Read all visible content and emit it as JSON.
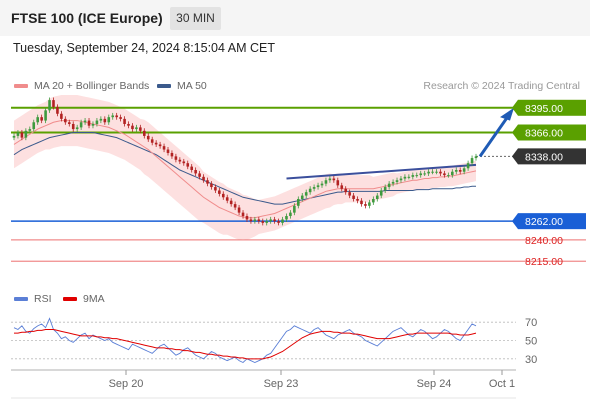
{
  "header": {
    "title": "FTSE 100 (ICE Europe)",
    "interval": "30 MIN"
  },
  "timestamp": "Tuesday, September 24, 2024 8:15:04 AM CET",
  "legend": [
    {
      "label": "MA 20 + Bollinger Bands",
      "color": "#f08c8c"
    },
    {
      "label": "MA 50",
      "color": "#3b5a8c"
    }
  ],
  "credit": "Research © 2024 Trading Central",
  "rsi_legend": [
    {
      "label": "RSI",
      "color": "#5b7fd6"
    },
    {
      "label": "9MA",
      "color": "#e00000"
    }
  ],
  "colors": {
    "up_candle": "#3e9a3e",
    "down_candle": "#b22222",
    "ma20": "#f08c8c",
    "ma50": "#3b5a8c",
    "band_fill": "#fde0e0",
    "resistance": "#5aa000",
    "support": "#1a5fd6",
    "target": "#f08c8c"
  },
  "chart_data": [
    {
      "type": "candlestick",
      "title": "FTSE 100 (ICE Europe) 30 MIN",
      "ylim": [
        8200,
        8410
      ],
      "x_ticks": [
        "Sep 20",
        "Sep 23",
        "Sep 24",
        "Oct 1"
      ],
      "levels": [
        {
          "value": 8395.0,
          "label": "8395.00",
          "kind": "resistance"
        },
        {
          "value": 8366.0,
          "label": "8366.00",
          "kind": "resistance"
        },
        {
          "value": 8338.0,
          "label": "8338.00",
          "kind": "last"
        },
        {
          "value": 8262.0,
          "label": "8262.00",
          "kind": "support"
        },
        {
          "value": 8240.0,
          "label": "8240.00",
          "kind": "target"
        },
        {
          "value": 8215.0,
          "label": "8215.00",
          "kind": "target"
        }
      ],
      "close": [
        8362,
        8366,
        8360,
        8368,
        8370,
        8378,
        8384,
        8380,
        8392,
        8404,
        8396,
        8388,
        8382,
        8378,
        8376,
        8370,
        8372,
        8378,
        8380,
        8374,
        8376,
        8380,
        8382,
        8378,
        8384,
        8386,
        8384,
        8382,
        8376,
        8374,
        8370,
        8372,
        8368,
        8362,
        8358,
        8354,
        8352,
        8350,
        8346,
        8342,
        8338,
        8334,
        8332,
        8330,
        8326,
        8322,
        8318,
        8314,
        8310,
        8306,
        8302,
        8298,
        8294,
        8290,
        8286,
        8282,
        8278,
        8272,
        8268,
        8264,
        8262,
        8264,
        8262,
        8260,
        8262,
        8264,
        8262,
        8260,
        8264,
        8268,
        8272,
        8280,
        8288,
        8292,
        8296,
        8300,
        8302,
        8304,
        8306,
        8310,
        8312,
        8310,
        8304,
        8300,
        8296,
        8292,
        8288,
        8286,
        8282,
        8280,
        8284,
        8288,
        8292,
        8298,
        8302,
        8306,
        8308,
        8310,
        8312,
        8314,
        8314,
        8316,
        8316,
        8318,
        8318,
        8320,
        8320,
        8320,
        8318,
        8316,
        8316,
        8320,
        8322,
        8320,
        8324,
        8330,
        8336,
        8338
      ],
      "ma20": [
        8352,
        8355,
        8358,
        8361,
        8364,
        8367,
        8370,
        8372,
        8374,
        8376,
        8378,
        8379,
        8380,
        8380,
        8380,
        8380,
        8380,
        8379,
        8378,
        8377,
        8376,
        8375,
        8374,
        8373,
        8372,
        8370,
        8368,
        8366,
        8364,
        8361,
        8358,
        8355,
        8352,
        8349,
        8346,
        8342,
        8338,
        8334,
        8330,
        8326,
        8322,
        8318,
        8314,
        8310,
        8306,
        8302,
        8298,
        8294,
        8290,
        8287,
        8284,
        8281,
        8278,
        8276,
        8274,
        8272,
        8270,
        8268,
        8267,
        8266,
        8266,
        8266,
        8267,
        8268,
        8269,
        8270,
        8271,
        8273,
        8275,
        8277,
        8279,
        8281,
        8283,
        8285,
        8287,
        8289,
        8291,
        8293,
        8295,
        8297,
        8298,
        8299,
        8300,
        8300,
        8300,
        8300,
        8300,
        8300,
        8300,
        8300,
        8300,
        8300,
        8301,
        8302,
        8303,
        8304,
        8305,
        8306,
        8307,
        8308,
        8309,
        8310,
        8310,
        8311,
        8312,
        8312,
        8313,
        8313,
        8314,
        8314,
        8315,
        8315,
        8316,
        8317,
        8318,
        8319,
        8320,
        8321
      ],
      "ma50": [
        8340,
        8343,
        8346,
        8348,
        8350,
        8352,
        8354,
        8356,
        8358,
        8360,
        8361,
        8362,
        8363,
        8364,
        8365,
        8366,
        8366,
        8366,
        8366,
        8366,
        8366,
        8365,
        8364,
        8363,
        8362,
        8361,
        8360,
        8358,
        8356,
        8354,
        8352,
        8350,
        8348,
        8346,
        8344,
        8342,
        8340,
        8337,
        8334,
        8331,
        8328,
        8325,
        8322,
        8320,
        8318,
        8316,
        8314,
        8312,
        8310,
        8308,
        8306,
        8304,
        8302,
        8300,
        8298,
        8296,
        8294,
        8292,
        8290,
        8289,
        8288,
        8287,
        8286,
        8285,
        8284,
        8283,
        8282,
        8282,
        8282,
        8283,
        8284,
        8285,
        8286,
        8287,
        8288,
        8289,
        8290,
        8291,
        8292,
        8293,
        8294,
        8295,
        8296,
        8296,
        8297,
        8297,
        8297,
        8297,
        8297,
        8297,
        8297,
        8297,
        8297,
        8297,
        8298,
        8298,
        8298,
        8298,
        8298,
        8298,
        8298,
        8298,
        8299,
        8299,
        8299,
        8299,
        8300,
        8300,
        8300,
        8300,
        8300,
        8300,
        8301,
        8301,
        8302,
        8302,
        8303,
        8303
      ],
      "band_width": [
        28,
        28,
        28,
        28,
        28,
        28,
        28,
        28,
        28,
        30,
        30,
        30,
        30,
        30,
        30,
        30,
        30,
        30,
        30,
        30,
        30,
        30,
        30,
        30,
        30,
        30,
        30,
        30,
        30,
        30,
        30,
        30,
        30,
        32,
        32,
        32,
        32,
        32,
        32,
        32,
        32,
        32,
        32,
        32,
        32,
        32,
        32,
        32,
        30,
        30,
        30,
        30,
        30,
        30,
        28,
        28,
        28,
        28,
        26,
        26,
        24,
        22,
        20,
        20,
        20,
        20,
        20,
        20,
        20,
        20,
        20,
        20,
        20,
        20,
        20,
        20,
        20,
        20,
        20,
        20,
        20,
        18,
        18,
        18,
        16,
        16,
        16,
        16,
        16,
        16,
        16,
        14,
        14,
        14,
        14,
        14,
        14,
        12,
        12,
        12,
        12,
        12,
        12,
        12,
        12,
        12,
        12,
        12,
        12,
        12,
        12,
        12,
        12,
        12,
        12,
        12,
        12,
        12,
        12
      ]
    },
    {
      "type": "line",
      "title": "RSI",
      "ylim": [
        20,
        80
      ],
      "y_ticks": [
        "70",
        "50",
        "30"
      ],
      "series": [
        {
          "name": "RSI",
          "values": [
            64,
            62,
            66,
            60,
            58,
            63,
            66,
            68,
            64,
            74,
            62,
            58,
            52,
            54,
            50,
            48,
            52,
            56,
            58,
            52,
            56,
            54,
            52,
            50,
            52,
            48,
            46,
            44,
            42,
            40,
            46,
            44,
            42,
            40,
            38,
            36,
            40,
            44,
            46,
            42,
            38,
            34,
            36,
            40,
            42,
            38,
            34,
            32,
            30,
            34,
            38,
            36,
            32,
            30,
            28,
            30,
            32,
            28,
            26,
            30,
            28,
            26,
            28,
            30,
            34,
            36,
            42,
            48,
            54,
            60,
            62,
            66,
            64,
            62,
            60,
            58,
            62,
            64,
            60,
            56,
            54,
            52,
            56,
            58,
            60,
            62,
            58,
            56,
            54,
            50,
            48,
            46,
            44,
            48,
            52,
            56,
            60,
            62,
            64,
            60,
            56,
            54,
            58,
            62,
            60,
            56,
            52,
            54,
            58,
            62,
            60,
            56,
            52,
            50,
            56,
            62,
            68,
            66
          ]
        },
        {
          "name": "9MA",
          "values": [
            58,
            58,
            59,
            59,
            60,
            60,
            61,
            61,
            62,
            62,
            62,
            61,
            60,
            59,
            58,
            57,
            56,
            55,
            55,
            55,
            55,
            54,
            54,
            53,
            53,
            52,
            52,
            51,
            50,
            49,
            48,
            47,
            46,
            45,
            44,
            43,
            42,
            42,
            42,
            41,
            41,
            40,
            40,
            39,
            39,
            38,
            37,
            37,
            36,
            35,
            35,
            34,
            34,
            33,
            33,
            32,
            32,
            31,
            31,
            30,
            30,
            30,
            30,
            30,
            31,
            32,
            34,
            36,
            38,
            41,
            44,
            47,
            50,
            53,
            55,
            57,
            58,
            59,
            60,
            60,
            60,
            59,
            59,
            58,
            58,
            58,
            57,
            57,
            56,
            55,
            54,
            53,
            52,
            52,
            52,
            52,
            53,
            54,
            55,
            56,
            57,
            57,
            58,
            58,
            58,
            58,
            58,
            58,
            58,
            58,
            58,
            57,
            57,
            56,
            56,
            56,
            57,
            58
          ]
        }
      ]
    }
  ]
}
